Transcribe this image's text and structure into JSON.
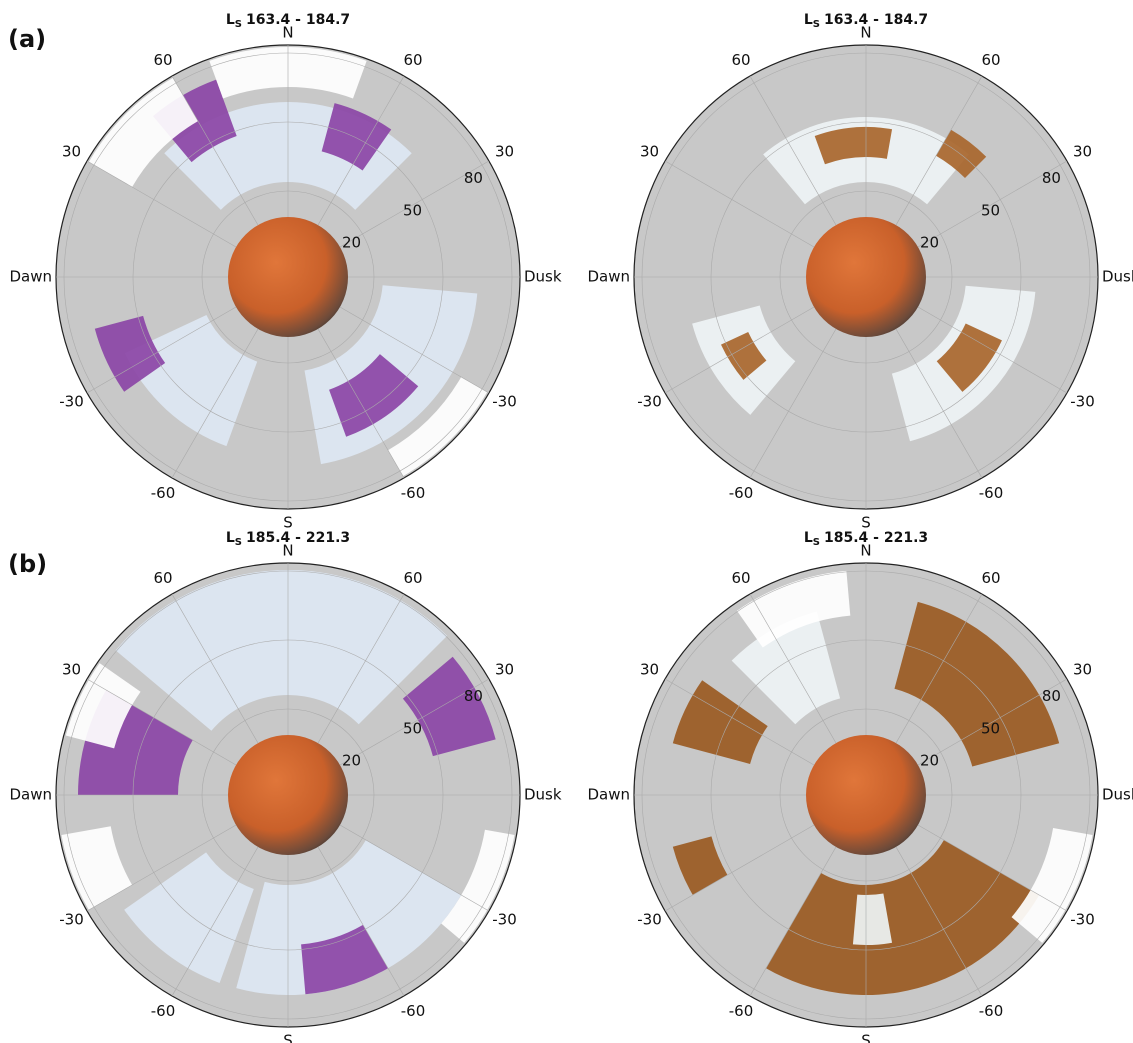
{
  "panel_labels": [
    "(a)",
    "(b)"
  ],
  "panels": [
    {
      "title_prefix": "L",
      "title_sub": "S",
      "title_range": "163.4 - 184.7"
    },
    {
      "title_prefix": "L",
      "title_sub": "S",
      "title_range": "163.4 - 184.7"
    },
    {
      "title_prefix": "L",
      "title_sub": "S",
      "title_range": "185.4 - 221.3"
    },
    {
      "title_prefix": "L",
      "title_sub": "S",
      "title_range": "185.4 - 221.3"
    }
  ],
  "axis": {
    "north": "N",
    "south": "S",
    "left": "Dawn",
    "right": "Dusk",
    "angle_ticks": [
      60,
      30,
      -30,
      -60
    ],
    "radial_ticks": [
      20,
      50,
      80
    ]
  }
}
